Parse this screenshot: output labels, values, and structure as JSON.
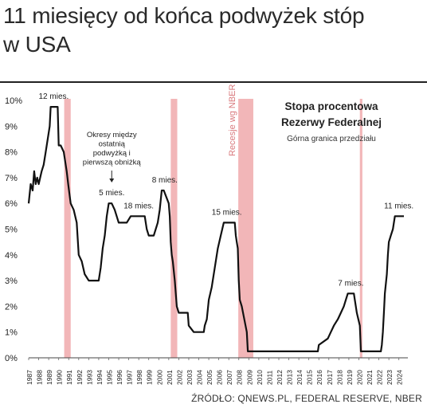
{
  "title_line1": "11 miesięcy od końca podwyżek stóp",
  "title_line2": "w USA",
  "source": "ŹRÓDŁO: QNEWS.PL, FEDERAL RESERVE, NBER",
  "colors": {
    "line": "#111111",
    "recession": "#f2b6b8",
    "text": "#222222"
  },
  "chart_data": {
    "type": "line",
    "title": "Stopa procentowa\nRezerwy Federalnej",
    "subtitle": "Górna granica przedziału",
    "xlabel": "",
    "ylabel": "",
    "xlim": [
      1987,
      2024.9
    ],
    "ylim": [
      0,
      10
    ],
    "x_ticks": [
      1987,
      1988,
      1989,
      1990,
      1991,
      1992,
      1993,
      1994,
      1995,
      1996,
      1997,
      1998,
      1999,
      2000,
      2001,
      2002,
      2003,
      2004,
      2005,
      2006,
      2007,
      2008,
      2009,
      2010,
      2011,
      2012,
      2013,
      2014,
      2015,
      2016,
      2017,
      2018,
      2019,
      2020,
      2021,
      2022,
      2023,
      2024
    ],
    "y_ticks": [
      0,
      1,
      2,
      3,
      4,
      5,
      6,
      7,
      8,
      9,
      10
    ],
    "y_tick_labels": [
      "0%",
      "1%",
      "2%",
      "3%",
      "4%",
      "5%",
      "6%",
      "7%",
      "8%",
      "9%",
      "10%"
    ],
    "recessions": [
      {
        "start": 1990.55,
        "end": 1991.2
      },
      {
        "start": 2001.2,
        "end": 2001.85
      },
      {
        "start": 2007.95,
        "end": 2009.45
      },
      {
        "start": 2020.1,
        "end": 2020.35
      }
    ],
    "recession_label": "Recesje wg NBER",
    "series": [
      {
        "name": "",
        "x": [
          1987.0,
          1987.2,
          1987.4,
          1987.55,
          1987.7,
          1987.85,
          1988.0,
          1988.3,
          1988.5,
          1988.7,
          1988.9,
          1989.1,
          1989.2,
          1989.9,
          1990.0,
          1990.2,
          1990.5,
          1990.8,
          1990.95,
          1991.2,
          1991.5,
          1991.8,
          1992.0,
          1992.3,
          1992.6,
          1993.0,
          1994.0,
          1994.2,
          1994.4,
          1994.6,
          1994.8,
          1995.0,
          1995.3,
          1995.6,
          1996.0,
          1996.8,
          1997.2,
          1998.6,
          1998.8,
          1999.0,
          1999.5,
          1999.7,
          1999.9,
          2000.1,
          2000.3,
          2000.5,
          2001.0,
          2001.1,
          2001.2,
          2001.3,
          2001.4,
          2001.6,
          2001.8,
          2002.0,
          2002.9,
          2003.0,
          2003.5,
          2004.5,
          2004.6,
          2004.8,
          2005.0,
          2005.3,
          2005.6,
          2005.9,
          2006.2,
          2006.5,
          2007.6,
          2007.7,
          2007.8,
          2007.9,
          2008.0,
          2008.1,
          2008.3,
          2008.8,
          2008.9,
          2009.0,
          2015.9,
          2016.0,
          2016.9,
          2017.2,
          2017.5,
          2017.9,
          2018.2,
          2018.5,
          2018.7,
          2018.9,
          2019.5,
          2019.6,
          2019.8,
          2020.1,
          2020.2,
          2022.2,
          2022.3,
          2022.4,
          2022.5,
          2022.6,
          2022.8,
          2022.9,
          2023.0,
          2023.2,
          2023.4,
          2023.6,
          2024.5
        ],
        "y": [
          6.0,
          6.75,
          6.5,
          7.25,
          6.75,
          7.0,
          6.75,
          7.25,
          7.5,
          8.0,
          8.5,
          9.0,
          9.75,
          9.75,
          8.25,
          8.25,
          8.0,
          7.25,
          6.75,
          6.0,
          5.75,
          5.25,
          4.0,
          3.75,
          3.25,
          3.0,
          3.0,
          3.5,
          4.25,
          4.75,
          5.5,
          6.0,
          6.0,
          5.75,
          5.25,
          5.25,
          5.5,
          5.5,
          5.0,
          4.75,
          4.75,
          5.0,
          5.25,
          5.75,
          6.5,
          6.5,
          6.0,
          5.5,
          4.5,
          4.0,
          3.75,
          3.0,
          2.0,
          1.75,
          1.75,
          1.25,
          1.0,
          1.0,
          1.25,
          1.5,
          2.25,
          2.75,
          3.5,
          4.25,
          4.75,
          5.25,
          5.25,
          4.75,
          4.5,
          4.25,
          3.0,
          2.25,
          2.0,
          1.0,
          0.25,
          0.25,
          0.25,
          0.5,
          0.75,
          1.0,
          1.25,
          1.5,
          1.75,
          2.0,
          2.25,
          2.5,
          2.5,
          2.25,
          1.75,
          1.25,
          0.25,
          0.25,
          0.5,
          1.0,
          1.75,
          2.5,
          3.25,
          4.0,
          4.5,
          4.75,
          5.0,
          5.5,
          5.5
        ]
      }
    ],
    "annotations": [
      {
        "x": 1989.5,
        "y": 9.75,
        "text": "12 mies."
      },
      {
        "x": 1995.3,
        "y": 6.0,
        "text": "5 mies."
      },
      {
        "x": 1998.0,
        "y": 5.5,
        "text": "18 mies."
      },
      {
        "x": 2000.6,
        "y": 6.5,
        "text": "8 mies."
      },
      {
        "x": 2006.8,
        "y": 5.25,
        "text": "15 mies."
      },
      {
        "x": 2019.2,
        "y": 2.5,
        "text": "7 mies."
      },
      {
        "x": 2024.0,
        "y": 5.5,
        "text": "11 mies."
      }
    ],
    "note_lines": [
      "Okresy między",
      "ostatnią",
      "podwyżką i",
      "pierwszą obniżką"
    ]
  }
}
